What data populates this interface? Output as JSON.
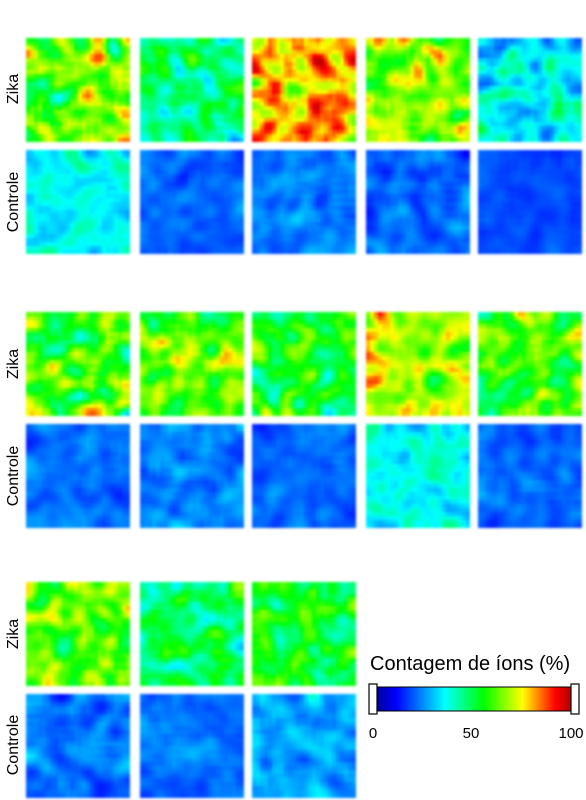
{
  "labels": {
    "zika": "Zika",
    "controle": "Controle"
  },
  "legend": {
    "title": "Contagem de íons (%)",
    "ticks": [
      "0",
      "50",
      "100"
    ],
    "range": [
      0,
      100
    ],
    "colors": [
      "#00009a",
      "#0000ff",
      "#00ffff",
      "#00ff00",
      "#ffff00",
      "#ff0000",
      "#b00000"
    ]
  },
  "groups": [
    {
      "zika": [
        {
          "level": 62,
          "spread": 22
        },
        {
          "level": 45,
          "spread": 18
        },
        {
          "level": 82,
          "spread": 22
        },
        {
          "level": 65,
          "spread": 22
        },
        {
          "level": 35,
          "spread": 16
        }
      ],
      "controle": [
        {
          "level": 35,
          "spread": 10
        },
        {
          "level": 20,
          "spread": 6
        },
        {
          "level": 22,
          "spread": 8
        },
        {
          "level": 20,
          "spread": 8
        },
        {
          "level": 17,
          "spread": 4
        }
      ]
    },
    {
      "zika": [
        {
          "level": 58,
          "spread": 22
        },
        {
          "level": 62,
          "spread": 20
        },
        {
          "level": 55,
          "spread": 20
        },
        {
          "level": 70,
          "spread": 18
        },
        {
          "level": 60,
          "spread": 20
        }
      ],
      "controle": [
        {
          "level": 21,
          "spread": 6
        },
        {
          "level": 22,
          "spread": 8
        },
        {
          "level": 20,
          "spread": 6
        },
        {
          "level": 36,
          "spread": 10
        },
        {
          "level": 20,
          "spread": 6
        }
      ]
    },
    {
      "zika": [
        {
          "level": 60,
          "spread": 20
        },
        {
          "level": 47,
          "spread": 18
        },
        {
          "level": 52,
          "spread": 18
        }
      ],
      "controle": [
        {
          "level": 22,
          "spread": 8
        },
        {
          "level": 21,
          "spread": 6
        },
        {
          "level": 26,
          "spread": 10
        }
      ]
    }
  ]
}
